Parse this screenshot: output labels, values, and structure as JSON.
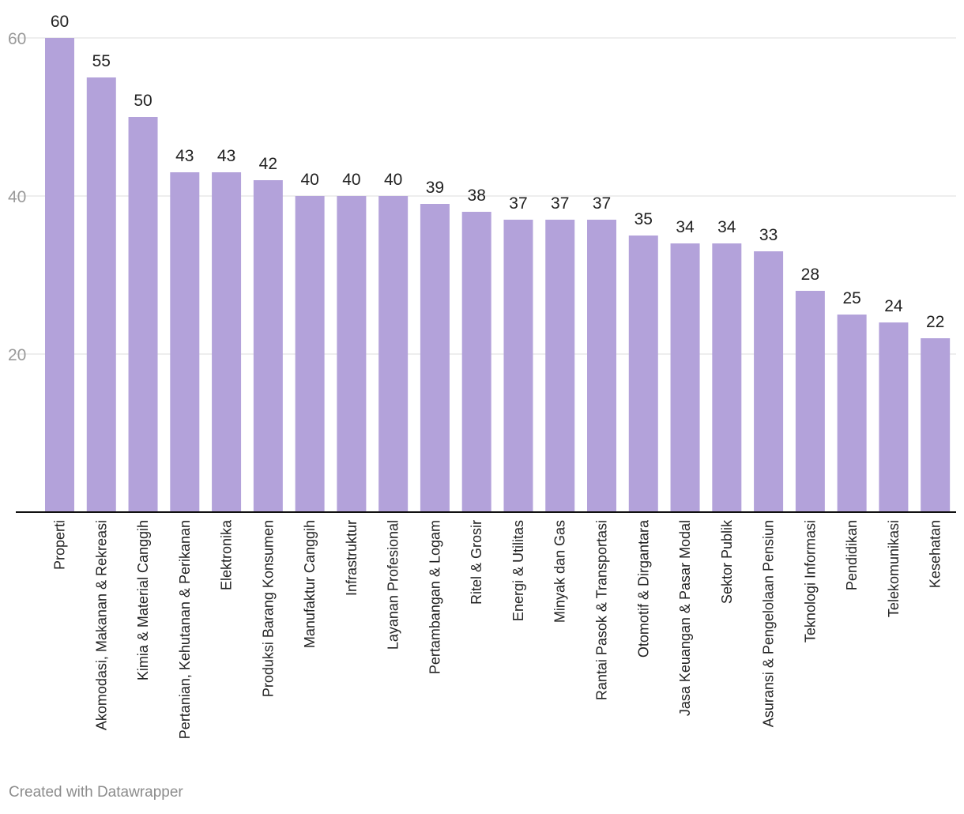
{
  "chart_data": {
    "type": "bar",
    "categories": [
      "Properti",
      "Akomodasi, Makanan & Rekreasi",
      "Kimia & Material Canggih",
      "Pertanian, Kehutanan & Perikanan",
      "Elektronika",
      "Produksi Barang Konsumen",
      "Manufaktur Canggih",
      "Infrastruktur",
      "Layanan Profesional",
      "Pertambangan & Logam",
      "Ritel & Grosir",
      "Energi & Utilitas",
      "Minyak dan Gas",
      "Rantai Pasok & Transportasi",
      "Otomotif & Dirgantara",
      "Jasa Keuangan & Pasar Modal",
      "Sektor Publik",
      "Asuransi & Pengelolaan Pensiun",
      "Teknologi Informasi",
      "Pendidikan",
      "Telekomunikasi",
      "Kesehatan"
    ],
    "values": [
      60,
      55,
      50,
      43,
      43,
      42,
      40,
      40,
      40,
      39,
      38,
      37,
      37,
      37,
      35,
      34,
      34,
      33,
      28,
      25,
      24,
      22
    ],
    "ylim": [
      0,
      60
    ],
    "yticks": [
      20,
      40,
      60
    ],
    "grid": true,
    "bar_color": "#b3a2da",
    "title": "",
    "xlabel": "",
    "ylabel": ""
  },
  "footer": {
    "credit": "Created with Datawrapper"
  }
}
